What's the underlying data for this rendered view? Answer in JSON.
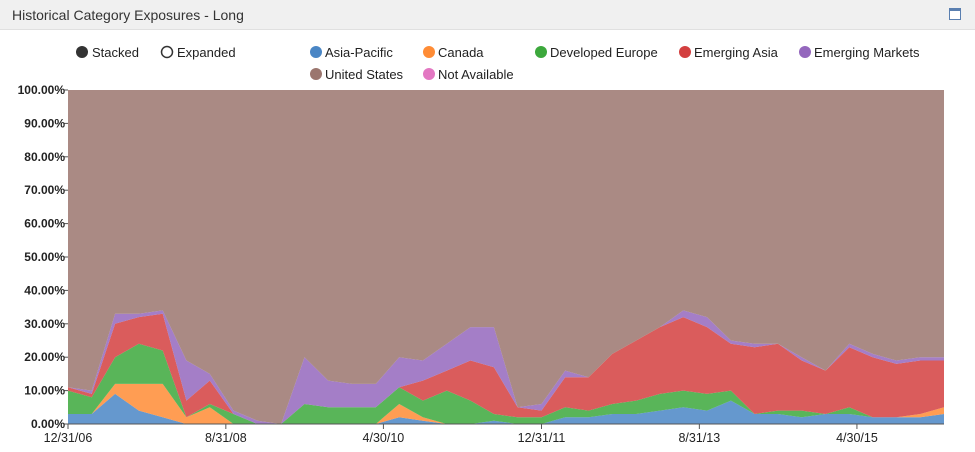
{
  "panel": {
    "title": "Historical Category Exposures - Long",
    "maximize_icon": "window-maximize-icon"
  },
  "mode_toggle": {
    "options": [
      {
        "label": "Stacked",
        "selected": true
      },
      {
        "label": "Expanded",
        "selected": false
      }
    ]
  },
  "chart_data": {
    "type": "area",
    "stacking": "percent",
    "x": [
      "12/31/06",
      "3/31/07",
      "6/30/07",
      "9/30/07",
      "12/31/07",
      "3/31/08",
      "6/30/08",
      "9/30/08",
      "12/31/08",
      "3/31/09",
      "6/30/09",
      "9/30/09",
      "12/31/09",
      "3/31/10",
      "6/30/10",
      "9/30/10",
      "12/31/10",
      "3/31/11",
      "6/30/11",
      "9/30/11",
      "12/31/11",
      "3/31/12",
      "6/30/12",
      "9/30/12",
      "12/31/12",
      "3/31/13",
      "6/30/13",
      "9/30/13",
      "12/31/13",
      "3/31/14",
      "6/30/14",
      "9/30/14",
      "12/31/14",
      "3/31/15",
      "6/30/15",
      "9/30/15",
      "12/31/15",
      "3/31/16"
    ],
    "x_tick_labels": [
      "12/31/06",
      "8/31/08",
      "4/30/10",
      "12/31/11",
      "8/31/13",
      "4/30/15"
    ],
    "y_tick_labels": [
      "0.00%",
      "10.00%",
      "20.00%",
      "30.00%",
      "40.00%",
      "50.00%",
      "60.00%",
      "70.00%",
      "80.00%",
      "90.00%",
      "100.00%"
    ],
    "ylim": [
      0,
      100
    ],
    "legend_position": "top",
    "series": [
      {
        "name": "Asia-Pacific",
        "color": "#4a86c5",
        "values": [
          3,
          3,
          9,
          4,
          2,
          0,
          0,
          0,
          0,
          0,
          0,
          0,
          0,
          0,
          2,
          1,
          0,
          0,
          1,
          0,
          0,
          2,
          2,
          3,
          3,
          4,
          5,
          4,
          7,
          3,
          3,
          2,
          3,
          3,
          2,
          2,
          2,
          3
        ]
      },
      {
        "name": "Canada",
        "color": "#ff8c35",
        "values": [
          0,
          0,
          3,
          8,
          10,
          2,
          5,
          0,
          0,
          0,
          0,
          0,
          0,
          0,
          4,
          1,
          0,
          0,
          0,
          0,
          0,
          0,
          0,
          0,
          0,
          0,
          0,
          0,
          0,
          0,
          0,
          0,
          0,
          0,
          0,
          0,
          1,
          2
        ]
      },
      {
        "name": "Developed Europe",
        "color": "#3ca83c",
        "values": [
          7,
          5,
          8,
          12,
          10,
          0,
          1,
          3,
          0,
          0,
          6,
          5,
          5,
          5,
          5,
          5,
          10,
          7,
          2,
          2,
          2,
          3,
          2,
          3,
          4,
          5,
          5,
          5,
          3,
          0,
          1,
          2,
          0,
          2,
          0,
          0,
          0,
          0
        ]
      },
      {
        "name": "Emerging Asia",
        "color": "#d33f3f",
        "values": [
          1,
          1,
          10,
          8,
          11,
          5,
          7,
          0,
          0,
          0,
          0,
          0,
          0,
          0,
          0,
          6,
          6,
          12,
          14,
          3,
          2,
          9,
          10,
          15,
          18,
          20,
          22,
          20,
          14,
          20,
          20,
          15,
          13,
          18,
          18,
          16,
          16,
          14
        ]
      },
      {
        "name": "Emerging Markets",
        "color": "#9467bd",
        "values": [
          0,
          1,
          3,
          1,
          1,
          12,
          2,
          1,
          1,
          0,
          14,
          8,
          7,
          7,
          9,
          6,
          8,
          10,
          12,
          0,
          2,
          2,
          0,
          0,
          0,
          0,
          2,
          3,
          1,
          1,
          0,
          1,
          0,
          1,
          1,
          1,
          1,
          1
        ]
      },
      {
        "name": "United States",
        "color": "#9b766e",
        "values": [
          89,
          90,
          67,
          67,
          66,
          81,
          85,
          96,
          99,
          100,
          80,
          87,
          88,
          88,
          80,
          81,
          76,
          71,
          71,
          95,
          94,
          84,
          86,
          79,
          75,
          71,
          66,
          68,
          75,
          76,
          76,
          80,
          84,
          76,
          79,
          81,
          80,
          80
        ]
      },
      {
        "name": "Not Available",
        "color": "#e377c2",
        "values": [
          0,
          0,
          0,
          0,
          0,
          0,
          0,
          0,
          0,
          0,
          0,
          0,
          0,
          0,
          0,
          0,
          0,
          0,
          0,
          0,
          0,
          0,
          0,
          0,
          0,
          0,
          0,
          0,
          0,
          0,
          0,
          0,
          0,
          0,
          0,
          0,
          0,
          0
        ]
      }
    ]
  }
}
